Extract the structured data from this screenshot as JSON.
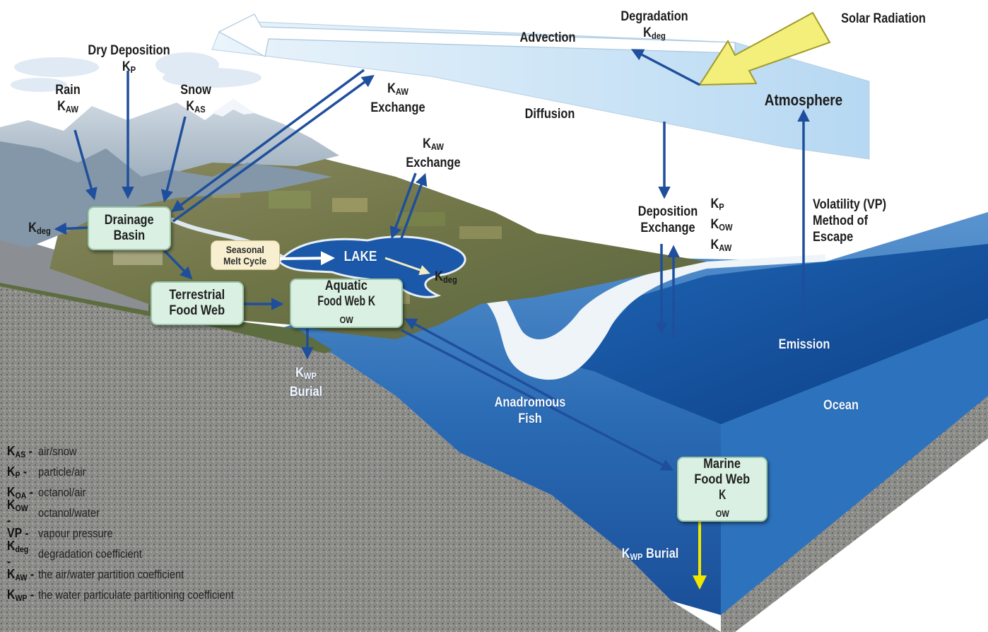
{
  "labels": {
    "advection": "Advection",
    "diffusion": "Diffusion",
    "degradation": "Degradation",
    "degradation_k": "K",
    "degradation_k_sub": "deg",
    "solar_radiation": "Solar Radiation",
    "atmosphere": "Atmosphere",
    "dry_deposition": "Dry Deposition",
    "dry_deposition_k": "K",
    "dry_deposition_k_sub": "P",
    "rain": "Rain",
    "rain_k": "K",
    "rain_k_sub": "AW",
    "snow": "Snow",
    "snow_k": "K",
    "snow_k_sub": "AS",
    "kaw_exchange_top_k": "K",
    "kaw_exchange_top_k_sub": "AW",
    "kaw_exchange_top_text": "Exchange",
    "kaw_exchange_lake_k": "K",
    "kaw_exchange_lake_k_sub": "AW",
    "kaw_exchange_lake_text": "Exchange",
    "kdeg_left_k": "K",
    "kdeg_left_k_sub": "deg",
    "kdeg_lake_k": "K",
    "kdeg_lake_k_sub": "deg",
    "lake": "LAKE",
    "deposition_exchange_line1": "Deposition",
    "deposition_exchange_line2": "Exchange",
    "kp_k": "K",
    "kp_sub": "P",
    "kow_k": "K",
    "kow_sub": "OW",
    "kaw_k": "K",
    "kaw_sub": "AW",
    "volatility_line1": "Volatility (VP)",
    "volatility_line2": "Method of",
    "volatility_line3": "Escape",
    "emission": "Emission",
    "ocean": "Ocean",
    "anadromous_line1": "Anadromous",
    "anadromous_line2": "Fish",
    "kwp_burial_land_k": "K",
    "kwp_burial_land_k_sub": "WP",
    "kwp_burial_land_text": "Burial",
    "kwp_burial_sea_k": "K",
    "kwp_burial_sea_k_sub": "WP",
    "kwp_burial_sea_text": "Burial"
  },
  "boxes": {
    "drainage_line1": "Drainage",
    "drainage_line2": "Basin",
    "terrestrial_line1": "Terrestrial",
    "terrestrial_line2": "Food Web",
    "aquatic_line1": "Aquatic",
    "aquatic_line2": "Food Web K",
    "aquatic_line2_sub": "OW",
    "marine_line1": "Marine",
    "marine_line2": "Food Web",
    "marine_line3_k": "K",
    "marine_line3_sub": "OW",
    "melt_line1": "Seasonal",
    "melt_line2": "Melt Cycle"
  },
  "legend": [
    {
      "k": "K",
      "sub": "AS",
      "desc": "air/snow"
    },
    {
      "k": "K",
      "sub": "P",
      "desc": "particle/air"
    },
    {
      "k": "K",
      "sub": "OA",
      "desc": "octanol/air"
    },
    {
      "k": "K",
      "sub": "OW",
      "desc": "octanol/water"
    },
    {
      "k": "VP",
      "sub": "",
      "desc": "vapour pressure"
    },
    {
      "k": "K",
      "sub": "deg",
      "desc": "degradation coefficient"
    },
    {
      "k": "K",
      "sub": "AW",
      "desc": "the air/water partition coefficient"
    },
    {
      "k": "K",
      "sub": "WP",
      "desc": "the water particulate partitioning coefficient"
    }
  ],
  "colors": {
    "arrow_blue": "#1f4f9c",
    "solar_arrow": "#f3ef7a",
    "burial_arrow": "#f2e600",
    "box_fill": "#d9f0e2",
    "ocean_deep": "#1a5ba8",
    "atmosphere_band": "#cfe6f7"
  }
}
